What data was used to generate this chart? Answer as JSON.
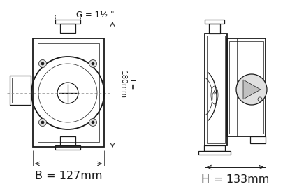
{
  "bg_color": "#ffffff",
  "line_color": "#1a1a1a",
  "dim_color": "#1a1a1a",
  "gray1": "#cccccc",
  "gray2": "#e8e8e8",
  "dash_color": "#888888",
  "label_G": "G = 1½ \"",
  "label_L": "L=\n180mm",
  "label_B": "B = 127mm",
  "label_H": "H = 133mm",
  "fig_width": 4.05,
  "fig_height": 2.76,
  "dpi": 100,
  "lw_thick": 1.3,
  "lw_med": 0.9,
  "lw_thin": 0.5,
  "lw_dim": 0.7
}
